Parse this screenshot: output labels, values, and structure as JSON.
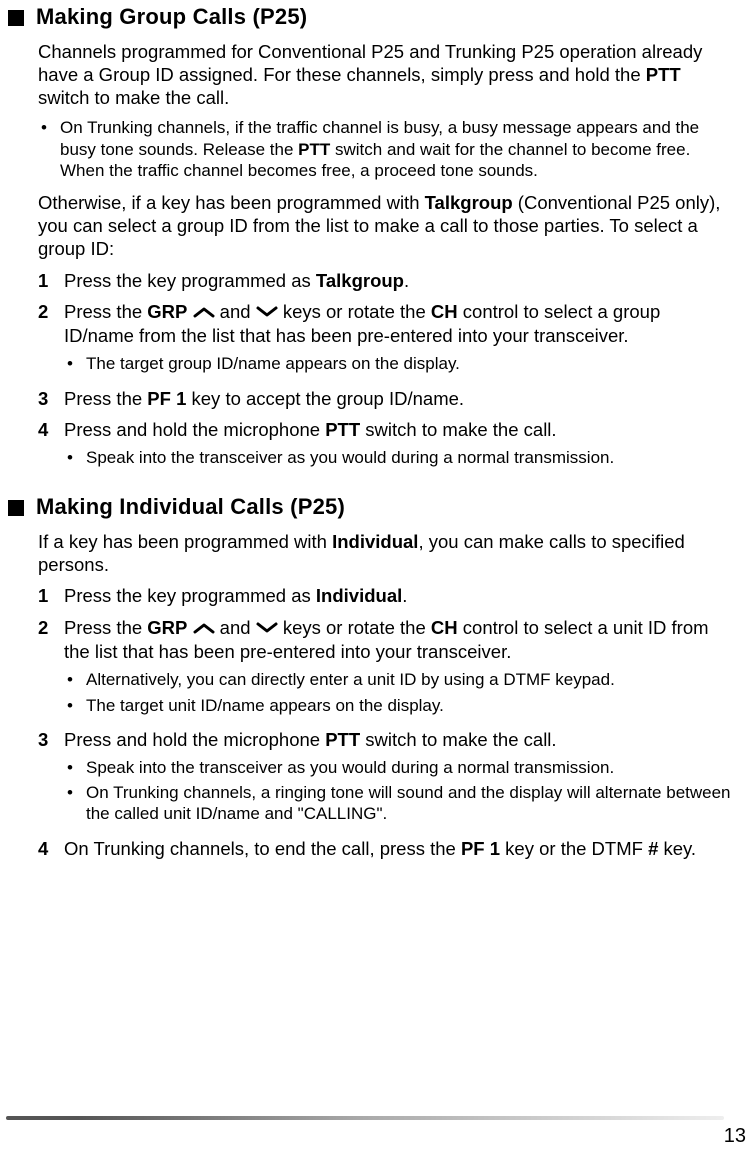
{
  "sections": [
    {
      "title": "Making Group Calls (P25)",
      "intro_html": "Channels programmed for Conventional P25 and Trunking P25 operation already have a Group ID assigned.  For these channels, simply press and hold the <b>PTT</b> switch to make the call.",
      "intro_bullets": [
        "On Trunking channels, if the traffic channel is busy, a busy message appears and the busy tone sounds.  Release the <b>PTT</b> switch and wait for the channel to become free.  When the traffic channel becomes free, a proceed tone sounds."
      ],
      "mid_html": "Otherwise, if a key has been programmed with <b>Talkgroup</b> (Conventional P25 only), you can select a group ID from the list to make a call to those parties.  To select a group ID:",
      "steps": [
        {
          "num": "1",
          "html": "Press the key programmed as <b>Talkgroup</b>.",
          "subs": []
        },
        {
          "num": "2",
          "html": "Press the <b>GRP</b> {{UP}} and {{DOWN}} keys or rotate the <b>CH</b> control to select a group ID/name from the list that has been pre-entered into your transceiver.",
          "subs": [
            "The target group ID/name appears on the display."
          ]
        },
        {
          "num": "3",
          "html": "Press the <b>PF 1</b> key to accept the group ID/name.",
          "subs": []
        },
        {
          "num": "4",
          "html": "Press and hold the microphone <b>PTT</b> switch to make the call.",
          "subs": [
            "Speak into the transceiver as you would during a normal transmission."
          ]
        }
      ]
    },
    {
      "title": "Making Individual Calls (P25)",
      "intro_html": "If a key has been programmed with <b>Individual</b>, you can make calls to specified persons.",
      "intro_bullets": [],
      "mid_html": "",
      "steps": [
        {
          "num": "1",
          "html": "Press the key programmed as <b>Individual</b>.",
          "subs": []
        },
        {
          "num": "2",
          "html": "Press the <b>GRP</b> {{UP}} and {{DOWN}} keys or rotate the <b>CH</b> control to select a unit ID from the list that has been pre-entered into your transceiver.",
          "subs": [
            "Alternatively, you can directly enter a unit ID by using a DTMF keypad.",
            "The target unit ID/name appears on the display."
          ]
        },
        {
          "num": "3",
          "html": "Press and hold the microphone <b>PTT</b> switch to make the call.",
          "subs": [
            "Speak into the transceiver as you would during a normal transmission.",
            "On Trunking channels, a ringing tone will sound and the display will alternate between the called unit ID/name and \"CALLING\"."
          ]
        },
        {
          "num": "4",
          "html": "On Trunking channels, to end the call, press the <b>PF 1</b> key or the DTMF <b>#</b> key.",
          "subs": []
        }
      ]
    }
  ],
  "page_number": "13",
  "icons": {
    "up_svg": "<svg width='22' height='12' viewBox='0 0 22 12'><polyline points='2,10 11,3 20,10' fill='none' stroke='#000' stroke-width='3' stroke-linecap='round' stroke-linejoin='round'/></svg>",
    "down_svg": "<svg width='22' height='12' viewBox='0 0 22 12'><polyline points='2,2 11,9 20,2' fill='none' stroke='#000' stroke-width='3' stroke-linecap='round' stroke-linejoin='round'/></svg>"
  }
}
